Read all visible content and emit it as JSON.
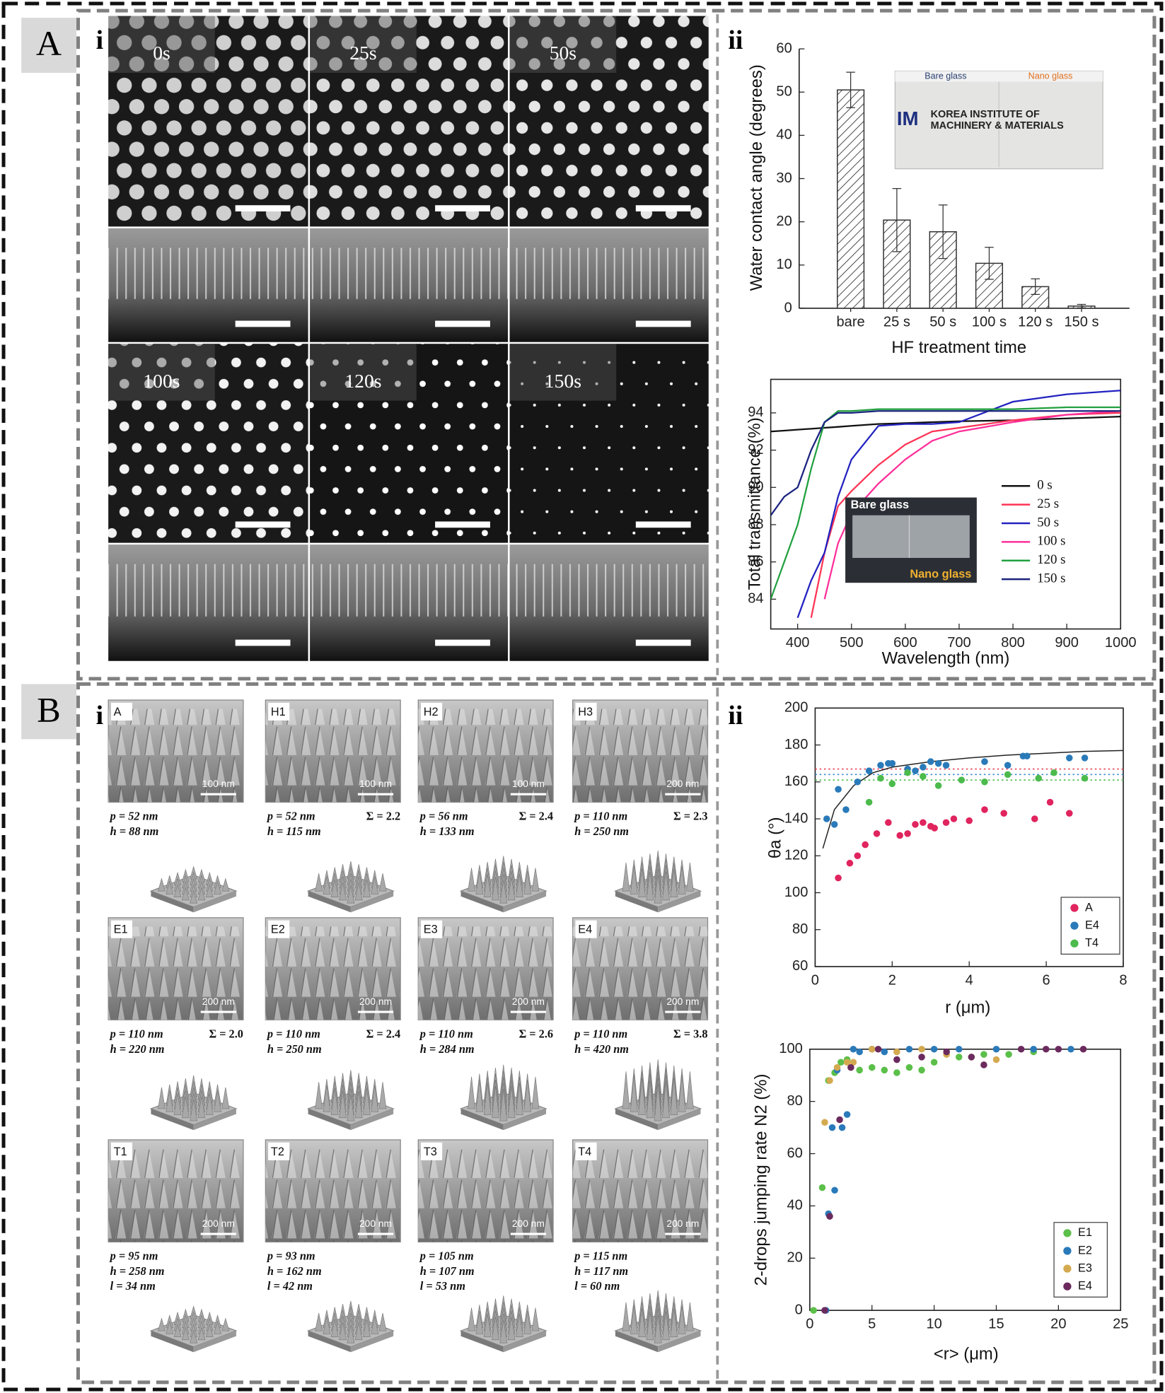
{
  "panel_labels": [
    "A",
    "B"
  ],
  "subpanel_labels": [
    "i",
    "ii",
    "i",
    "ii"
  ],
  "sem_times": [
    "0s",
    "25s",
    "50s",
    "100s",
    "120s",
    "150s"
  ],
  "bar_inset": {
    "left": "Bare glass",
    "right": "Nano glass",
    "logo": "IM",
    "text": [
      "KOREA INSTITUTE OF",
      "MACHINERY & MATERIALS"
    ]
  },
  "line_inset": {
    "top": "Bare glass",
    "bottom": "Nano glass"
  },
  "samples": [
    {
      "label": "A",
      "scale": "100 nm",
      "lines": [
        "p = 52 nm",
        "h = 88 nm"
      ]
    },
    {
      "label": "H1",
      "scale": "100 nm",
      "lines": [
        "p = 52 nm",
        "h = 115 nm"
      ],
      "sigma": "Σ = 2.2"
    },
    {
      "label": "H2",
      "scale": "100 nm",
      "lines": [
        "p = 56 nm",
        "h = 133 nm"
      ],
      "sigma": "Σ = 2.4"
    },
    {
      "label": "H3",
      "scale": "200 nm",
      "lines": [
        "p = 110 nm",
        "h = 250 nm"
      ],
      "sigma": "Σ = 2.3"
    },
    {
      "label": "E1",
      "scale": "200 nm",
      "lines": [
        "p = 110 nm",
        "h = 220 nm"
      ],
      "sigma": "Σ = 2.0"
    },
    {
      "label": "E2",
      "scale": "200 nm",
      "lines": [
        "p = 110 nm",
        "h = 250 nm"
      ],
      "sigma": "Σ = 2.4"
    },
    {
      "label": "E3",
      "scale": "200 nm",
      "lines": [
        "p = 110 nm",
        "h = 284 nm"
      ],
      "sigma": "Σ = 2.6"
    },
    {
      "label": "E4",
      "scale": "200 nm",
      "lines": [
        "p = 110 nm",
        "h = 420 nm"
      ],
      "sigma": "Σ = 3.8"
    },
    {
      "label": "T1",
      "scale": "200 nm",
      "lines": [
        "p = 95 nm",
        "h = 258 nm",
        "l = 34 nm"
      ]
    },
    {
      "label": "T2",
      "scale": "200 nm",
      "lines": [
        "p = 93 nm",
        "h = 162 nm",
        "l = 42 nm"
      ]
    },
    {
      "label": "T3",
      "scale": "200 nm",
      "lines": [
        "p = 105 nm",
        "h = 107 nm",
        "l = 53 nm"
      ]
    },
    {
      "label": "T4",
      "scale": "200 nm",
      "lines": [
        "p = 115 nm",
        "h = 117 nm",
        "l = 60 nm"
      ]
    }
  ],
  "chart_data": [
    {
      "type": "bar",
      "xlabel": "HF treatment time",
      "ylabel": "Water contact angle (degrees)",
      "categories": [
        "bare",
        "25 s",
        "50 s",
        "100 s",
        "120 s",
        "150 s"
      ],
      "values": [
        50.5,
        20.4,
        17.7,
        10.4,
        5.0,
        0.5
      ],
      "errors": [
        4.1,
        7.3,
        6.2,
        3.7,
        1.8,
        0.4
      ],
      "color": "#333333",
      "hatch": true,
      "ylim": [
        0,
        60
      ],
      "yticks": [
        0,
        10,
        20,
        30,
        40,
        50,
        60
      ]
    },
    {
      "type": "line",
      "xlabel": "Wavelength (nm)",
      "ylabel": "Total transmittance (%)",
      "x": [
        350,
        375,
        400,
        425,
        450,
        475,
        500,
        550,
        600,
        650,
        700,
        800,
        900,
        1000
      ],
      "xlim": [
        350,
        1000
      ],
      "xticks": [
        400,
        500,
        600,
        700,
        800,
        900,
        1000
      ],
      "ylim": [
        82.4,
        95.8
      ],
      "yticks": [
        84,
        86,
        88,
        90,
        92,
        94
      ],
      "legend": "lower right",
      "series": [
        {
          "name": "0 s",
          "color": "#111111",
          "values": [
            93,
            93.05,
            93.1,
            93.15,
            93.2,
            93.25,
            93.3,
            93.4,
            93.45,
            93.5,
            93.55,
            93.6,
            93.7,
            93.8
          ]
        },
        {
          "name": "25 s",
          "color": "#ff3355",
          "values": [
            null,
            null,
            null,
            83,
            86.5,
            89,
            89.8,
            91.2,
            92.3,
            93,
            93.2,
            93.6,
            93.9,
            94
          ]
        },
        {
          "name": "50 s",
          "color": "#2222c0",
          "values": [
            null,
            null,
            83,
            85,
            86.5,
            89.5,
            91.5,
            93.3,
            93.4,
            93.4,
            93.5,
            94.6,
            95,
            95.2
          ]
        },
        {
          "name": "100 s",
          "color": "#ff2f9a",
          "values": [
            null,
            null,
            null,
            null,
            84,
            87,
            88.6,
            90.2,
            91.5,
            92.5,
            93,
            93.5,
            93.9,
            94.1
          ]
        },
        {
          "name": "120 s",
          "color": "#22a040",
          "values": [
            84,
            86,
            88,
            91,
            93.5,
            94.1,
            94.1,
            94.2,
            94.2,
            94.2,
            94.2,
            94.2,
            94.3,
            94.3
          ]
        },
        {
          "name": "150 s",
          "color": "#1a237e",
          "values": [
            88.5,
            89.5,
            90,
            92,
            93.5,
            94,
            94,
            94.1,
            94.1,
            94.1,
            94.1,
            94.1,
            94.1,
            94.1
          ]
        }
      ]
    },
    {
      "type": "scatter",
      "xlabel": "r (μm)",
      "ylabel": "θa (°)",
      "xlim": [
        0,
        8
      ],
      "xticks": [
        0,
        2,
        4,
        6,
        8
      ],
      "ylim": [
        60,
        200
      ],
      "yticks": [
        60,
        80,
        100,
        120,
        140,
        160,
        180,
        200
      ],
      "legend": "lower right",
      "fit": {
        "x": [
          0.2,
          0.5,
          1,
          1.5,
          2,
          3,
          4,
          5,
          6,
          7,
          8
        ],
        "values": [
          124,
          145,
          158,
          165,
          168,
          171,
          173,
          174.5,
          175.5,
          176.5,
          177
        ]
      },
      "reference_lines": [
        {
          "color": "#e8405a",
          "value": 167
        },
        {
          "color": "#3a8ad0",
          "value": 164
        },
        {
          "color": "#4cbb4c",
          "value": 161
        }
      ],
      "series": [
        {
          "name": "A",
          "color": "#e0245e",
          "x": [
            0.6,
            0.9,
            1.1,
            1.3,
            1.6,
            1.9,
            2.2,
            2.4,
            2.6,
            2.8,
            3.0,
            3.1,
            3.4,
            3.6,
            4.0,
            4.4,
            4.9,
            5.7,
            6.1,
            6.6
          ],
          "values": [
            108,
            116,
            120,
            126,
            132,
            138,
            131,
            132,
            137,
            138,
            136,
            135,
            138,
            140,
            139,
            145,
            143,
            140,
            149,
            143
          ]
        },
        {
          "name": "E4",
          "color": "#2a7ab9",
          "x": [
            0.3,
            0.5,
            0.6,
            0.8,
            1.1,
            1.4,
            1.7,
            1.9,
            2.0,
            2.4,
            2.6,
            2.8,
            3.0,
            3.2,
            3.4,
            4.4,
            5.0,
            5.4,
            5.5,
            6.6,
            7.0
          ],
          "values": [
            140,
            137,
            156,
            145,
            160,
            166,
            169,
            170,
            170,
            167,
            166,
            168,
            171,
            170,
            169,
            171,
            169,
            174,
            174,
            173,
            173
          ]
        },
        {
          "name": "T4",
          "color": "#4cbb4c",
          "x": [
            1.4,
            1.7,
            2.0,
            2.4,
            2.8,
            3.2,
            3.8,
            4.4,
            5.0,
            5.8,
            6.2,
            7.0
          ],
          "values": [
            149,
            162,
            159,
            165,
            163,
            158,
            161,
            160,
            164,
            162,
            165,
            162
          ]
        }
      ]
    },
    {
      "type": "scatter",
      "xlabel": "<r> (μm)",
      "ylabel": "2-drops jumping rate N2 (%)",
      "xlim": [
        0,
        25
      ],
      "xticks": [
        0,
        5,
        10,
        15,
        20,
        25
      ],
      "ylim": [
        0,
        100
      ],
      "yticks": [
        0,
        20,
        40,
        60,
        80,
        100
      ],
      "legend": "lower right",
      "series": [
        {
          "name": "E1",
          "color": "#5cbf4a",
          "x": [
            0.3,
            1,
            1.5,
            2,
            2.5,
            3,
            4,
            5,
            6,
            7,
            8,
            9,
            10,
            12,
            14,
            16,
            18
          ],
          "values": [
            0,
            47,
            88,
            91,
            95,
            96,
            92,
            93,
            92,
            91,
            93,
            92,
            95,
            97,
            98,
            98,
            99
          ]
        },
        {
          "name": "E2",
          "color": "#2a7ab9",
          "x": [
            1.3,
            1.5,
            1.8,
            2,
            2.2,
            2.6,
            3,
            3.5,
            4,
            5,
            6,
            8,
            10,
            12,
            15,
            18,
            21
          ],
          "values": [
            0,
            37,
            70,
            46,
            92,
            70,
            75,
            100,
            99,
            100,
            99,
            100,
            100,
            100,
            100,
            100,
            100
          ]
        },
        {
          "name": "E3",
          "color": "#d4aa50",
          "x": [
            1.2,
            1.6,
            2.2,
            3,
            3.5,
            5,
            7,
            9,
            11,
            13,
            15
          ],
          "values": [
            72,
            88,
            93,
            95,
            95,
            100,
            99,
            100,
            98,
            97,
            96
          ]
        },
        {
          "name": "E4",
          "color": "#6b2a5e",
          "x": [
            1.2,
            1.6,
            2.4,
            3.3,
            5.5,
            7,
            9,
            11,
            13,
            14,
            17,
            19,
            20,
            22
          ],
          "values": [
            0,
            36,
            73,
            93,
            100,
            96,
            97,
            99,
            97,
            94,
            100,
            100,
            100,
            100
          ]
        }
      ]
    }
  ]
}
